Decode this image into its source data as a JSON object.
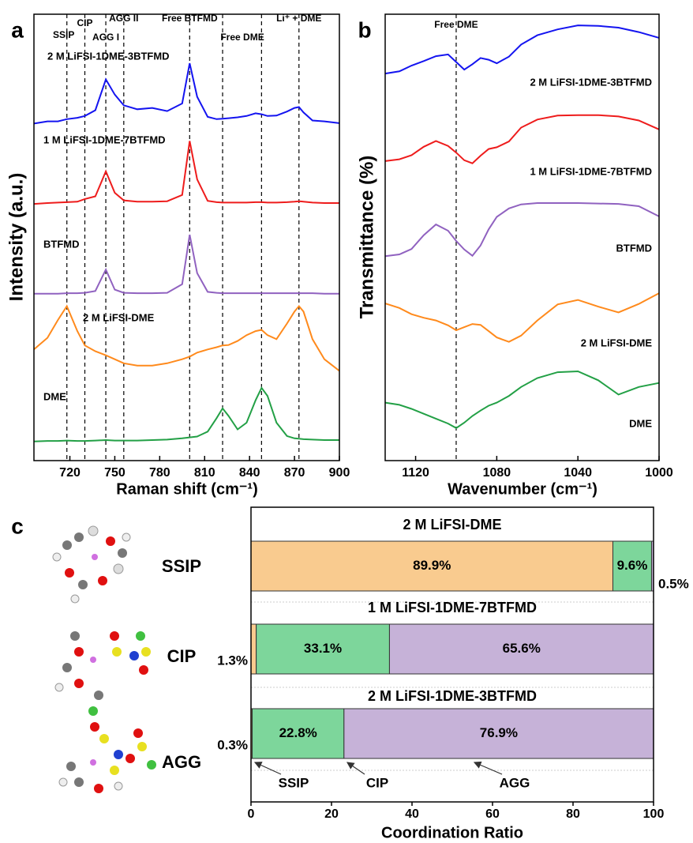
{
  "chart_data": [
    {
      "type": "line",
      "panel": "a",
      "x_label": "Raman shift (cm⁻¹)",
      "y_label": "Intensity (a.u.)",
      "xlim": [
        696,
        900
      ],
      "xticks": [
        720,
        750,
        780,
        810,
        840,
        870,
        900
      ],
      "ylim": [
        0,
        100
      ],
      "x": [
        696,
        705,
        712,
        718,
        725,
        730,
        737,
        744,
        750,
        756,
        765,
        775,
        785,
        795,
        800,
        805,
        812,
        818,
        822,
        826,
        832,
        838,
        844,
        848,
        852,
        858,
        865,
        870,
        873,
        876,
        882,
        890,
        900
      ],
      "reference_lines": [
        {
          "x": 718,
          "label": "SSIP"
        },
        {
          "x": 730,
          "label": "CIP"
        },
        {
          "x": 744,
          "label": "AGG I"
        },
        {
          "x": 756,
          "label": "AGG II"
        },
        {
          "x": 800,
          "label": "Free BTFMD"
        },
        {
          "x": 822,
          "label": "Free DME"
        },
        {
          "x": 848,
          "label": null
        },
        {
          "x": 873,
          "label": "Li⁺ + DME"
        }
      ],
      "series": [
        {
          "name": "2 M LiFSI-1DME-3BTFMD",
          "color": "#1414f0",
          "values": [
            75.5,
            76.0,
            76.0,
            76.5,
            76.8,
            77.2,
            78.5,
            85.4,
            82.0,
            79.6,
            78.7,
            79.0,
            78.3,
            80.0,
            89.0,
            81.5,
            77.0,
            76.5,
            76.6,
            76.7,
            76.9,
            77.2,
            77.8,
            77.6,
            77.2,
            77.3,
            78.2,
            79.0,
            79.2,
            78.0,
            76.2,
            76.0,
            75.6
          ]
        },
        {
          "name": "1 M LiFSI-1DME-7BTFMD",
          "color": "#ee1c1c",
          "values": [
            57.5,
            57.7,
            57.8,
            57.9,
            58.0,
            58.6,
            59.2,
            64.8,
            60.0,
            58.3,
            58.0,
            58.0,
            58.1,
            59.5,
            71.6,
            63.0,
            58.2,
            57.9,
            57.8,
            57.8,
            57.8,
            57.8,
            57.9,
            57.9,
            57.8,
            57.8,
            57.9,
            58.0,
            58.1,
            58.0,
            57.8,
            57.7,
            57.7
          ]
        },
        {
          "name": "BTFMD",
          "color": "#9062c0",
          "values": [
            37.4,
            37.4,
            37.4,
            37.5,
            37.5,
            37.6,
            38.0,
            42.8,
            38.3,
            37.6,
            37.5,
            37.5,
            37.6,
            39.5,
            50.6,
            42.0,
            37.8,
            37.6,
            37.5,
            37.5,
            37.5,
            37.5,
            37.5,
            37.5,
            37.5,
            37.5,
            37.5,
            37.5,
            37.5,
            37.5,
            37.5,
            37.4,
            37.4
          ]
        },
        {
          "name": "2 M LiFSI-DME",
          "color": "#ff8a1c",
          "values": [
            24.9,
            27.5,
            31.5,
            34.6,
            29.0,
            25.8,
            24.5,
            23.6,
            22.7,
            21.8,
            21.3,
            21.3,
            21.8,
            22.7,
            23.3,
            24.2,
            24.9,
            25.4,
            25.8,
            25.9,
            26.8,
            28.1,
            29.0,
            29.3,
            28.1,
            27.2,
            30.7,
            33.4,
            34.6,
            33.4,
            27.2,
            22.7,
            20.1
          ]
        },
        {
          "name": "DME",
          "color": "#23a046",
          "values": [
            4.3,
            4.4,
            4.4,
            4.5,
            4.4,
            4.4,
            4.5,
            4.6,
            4.5,
            4.5,
            4.5,
            4.6,
            4.7,
            5.0,
            5.2,
            5.4,
            6.5,
            9.5,
            11.7,
            10.0,
            7.0,
            8.5,
            13.5,
            16.3,
            14.5,
            8.5,
            5.5,
            5.0,
            4.9,
            4.8,
            4.7,
            4.6,
            4.6
          ]
        }
      ]
    },
    {
      "type": "line",
      "panel": "b",
      "x_label": "Wavenumber (cm⁻¹)",
      "y_label": "Transmittance (%)",
      "xlim": [
        1135,
        1000
      ],
      "xticks": [
        1120,
        1080,
        1040,
        1000
      ],
      "ylim": [
        0,
        100
      ],
      "x": [
        1135,
        1128,
        1122,
        1116,
        1110,
        1104,
        1100,
        1096,
        1092,
        1088,
        1084,
        1080,
        1074,
        1068,
        1060,
        1050,
        1040,
        1030,
        1020,
        1010,
        1000
      ],
      "reference_lines": [
        {
          "x": 1100,
          "label": "Free DME"
        }
      ],
      "series": [
        {
          "name": "2 M LiFSI-1DME-3BTFMD",
          "color": "#1414f0",
          "values": [
            86.7,
            87.2,
            88.5,
            89.5,
            90.6,
            91.0,
            89.3,
            87.6,
            88.8,
            90.2,
            89.8,
            89.0,
            90.5,
            93.2,
            95.3,
            96.6,
            97.5,
            97.4,
            97.0,
            96.0,
            94.7
          ]
        },
        {
          "name": "1 M LiFSI-1DME-7BTFMD",
          "color": "#ee1c1c",
          "values": [
            67.1,
            67.5,
            68.4,
            70.3,
            71.6,
            70.5,
            69.0,
            67.3,
            66.6,
            68.3,
            69.8,
            70.2,
            71.5,
            74.6,
            76.4,
            77.3,
            77.4,
            77.4,
            77.1,
            76.2,
            74.2
          ]
        },
        {
          "name": "BTFMD",
          "color": "#9062c0",
          "values": [
            45.8,
            46.2,
            47.4,
            50.5,
            52.9,
            51.5,
            49.2,
            47.3,
            45.9,
            48.2,
            51.8,
            54.6,
            56.5,
            57.4,
            57.7,
            57.7,
            57.7,
            57.6,
            57.5,
            57.0,
            54.7
          ]
        },
        {
          "name": "2 M LiFSI-DME",
          "color": "#ff8a1c",
          "values": [
            35.2,
            34.2,
            32.8,
            32.0,
            31.4,
            30.3,
            29.2,
            29.9,
            30.6,
            30.4,
            29.0,
            27.6,
            26.6,
            28.0,
            31.4,
            35.0,
            36.0,
            34.5,
            33.2,
            35.1,
            37.5
          ]
        },
        {
          "name": "DME",
          "color": "#23a046",
          "values": [
            13.0,
            12.5,
            11.6,
            10.5,
            9.4,
            8.3,
            7.3,
            8.5,
            10.0,
            11.2,
            12.3,
            13.0,
            14.5,
            16.5,
            18.5,
            19.8,
            20.0,
            18.0,
            14.8,
            16.5,
            17.4
          ]
        }
      ]
    },
    {
      "type": "stacked_barh",
      "panel": "c",
      "x_label": "Coordination Ratio",
      "xlim": [
        0,
        100
      ],
      "xticks": [
        0,
        20,
        40,
        60,
        80,
        100
      ],
      "categories": [
        "2 M LiFSI-DME",
        "1 M LiFSI-1DME-7BTFMD",
        "2 M LiFSI-1DME-3BTFMD"
      ],
      "series": [
        {
          "name": "SSIP",
          "color": "#f9cb8f",
          "label_color": "#f7903a",
          "values": [
            89.9,
            1.3,
            0.3
          ],
          "value_labels": [
            "89.9%",
            "1.3%",
            "0.3%"
          ]
        },
        {
          "name": "CIP",
          "color": "#7dd69b",
          "label_color": "#1dbb5c",
          "values": [
            9.6,
            33.1,
            22.8
          ],
          "value_labels": [
            "9.6%",
            "33.1%",
            "22.8%"
          ]
        },
        {
          "name": "AGG",
          "color": "#c6b2d8",
          "label_color": "#c77ee0",
          "values": [
            0.5,
            65.6,
            76.9
          ],
          "value_labels": [
            "0.5%",
            "65.6%",
            "76.9%"
          ]
        }
      ]
    }
  ]
}
